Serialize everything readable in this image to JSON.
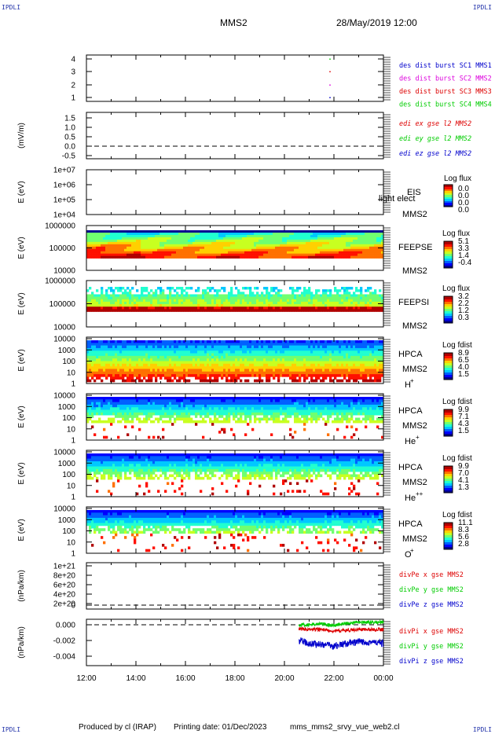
{
  "corner_label": "IPDLI",
  "header": {
    "spacecraft": "MMS2",
    "datetime": "28/May/2019 12:00"
  },
  "footer": {
    "produced_by": "Produced by cl (IRAP)",
    "printing_date": "Printing date: 01/Dec/2023",
    "filename": "mms_mms2_srvy_vue_web2.cl"
  },
  "x_ticks": [
    "12:00",
    "14:00",
    "16:00",
    "18:00",
    "20:00",
    "22:00",
    "00:00"
  ],
  "colors": {
    "blue": "#0000cc",
    "magenta": "#dd00dd",
    "red": "#dd0000",
    "green": "#00cc00",
    "frame": "#000000"
  },
  "chart_data": [
    {
      "type": "scatter",
      "panel": "dist-burst",
      "yticks": [
        "4",
        "3",
        "2",
        "1"
      ],
      "series": [
        {
          "name": "des dist burst SC1 MMS1",
          "color": "#0000cc",
          "x": [
            "21:50"
          ],
          "y": [
            1
          ]
        },
        {
          "name": "des dist burst SC2 MMS2",
          "color": "#dd00dd",
          "x": [
            "21:50"
          ],
          "y": [
            2
          ]
        },
        {
          "name": "des dist burst SC3 MMS3",
          "color": "#dd0000",
          "x": [
            "21:50"
          ],
          "y": [
            3
          ]
        },
        {
          "name": "des dist burst SC4 MMS4",
          "color": "#00cc00",
          "x": [
            "21:50"
          ],
          "y": [
            4
          ]
        }
      ],
      "ylim": [
        0.7,
        4.3
      ]
    },
    {
      "type": "line",
      "panel": "edi-e",
      "ylabel": "(mV/m)",
      "yticks": [
        "1.5",
        "1.0",
        "0.5",
        "0.0",
        "-0.5"
      ],
      "ylim": [
        -0.6,
        1.8
      ],
      "series": [
        {
          "name": "edi ex gse l2 MMS2",
          "color": "#dd0000",
          "values": []
        },
        {
          "name": "edi ey gse l2 MMS2",
          "color": "#00cc00",
          "values": []
        },
        {
          "name": "edi ez gse l2 MMS2",
          "color": "#0000cc",
          "values": []
        }
      ]
    },
    {
      "type": "heatmap",
      "panel": "eis",
      "ylabel": "E (eV)",
      "yticks": [
        "1e+07",
        "1e+06",
        "1e+05",
        "1e+04"
      ],
      "instrument": "EIS",
      "spacecraft": "MMS2",
      "overlay_text": "light elect",
      "cbar_title": "Log flux",
      "cbar_ticks": [
        "0.0",
        "0.0",
        "0.0",
        "0.0"
      ]
    },
    {
      "type": "heatmap",
      "panel": "feepse",
      "ylabel": "E (eV)",
      "yticks": [
        "1000000",
        "100000",
        "10000"
      ],
      "instrument": "FEEPSE",
      "spacecraft": "MMS2",
      "cbar_title": "Log flux",
      "cbar_ticks": [
        "5.1",
        "3.3",
        "1.4",
        "-0.4"
      ]
    },
    {
      "type": "heatmap",
      "panel": "feepsi",
      "ylabel": "E (eV)",
      "yticks": [
        "1000000",
        "100000",
        "10000"
      ],
      "instrument": "FEEPSI",
      "spacecraft": "MMS2",
      "cbar_title": "Log flux",
      "cbar_ticks": [
        "3.2",
        "2.2",
        "1.2",
        "0.3"
      ]
    },
    {
      "type": "heatmap",
      "panel": "hpca-h",
      "ylabel": "E (eV)",
      "yticks": [
        "10000",
        "1000",
        "100",
        "10",
        "1"
      ],
      "instrument": "HPCA",
      "spacecraft": "MMS2",
      "species": "H",
      "species_sup": "+",
      "cbar_title": "Log fdist",
      "cbar_ticks": [
        "8.9",
        "6.5",
        "4.0",
        "1.5"
      ]
    },
    {
      "type": "heatmap",
      "panel": "hpca-he",
      "ylabel": "E (eV)",
      "yticks": [
        "10000",
        "1000",
        "100",
        "10",
        "1"
      ],
      "instrument": "HPCA",
      "spacecraft": "MMS2",
      "species": "He",
      "species_sup": "+",
      "cbar_title": "Log fdist",
      "cbar_ticks": [
        "9.9",
        "7.1",
        "4.3",
        "1.5"
      ]
    },
    {
      "type": "heatmap",
      "panel": "hpca-he2",
      "ylabel": "E (eV)",
      "yticks": [
        "10000",
        "1000",
        "100",
        "10",
        "1"
      ],
      "instrument": "HPCA",
      "spacecraft": "MMS2",
      "species": "He",
      "species_sup": "++",
      "cbar_title": "Log fdist",
      "cbar_ticks": [
        "9.9",
        "7.0",
        "4.1",
        "1.3"
      ]
    },
    {
      "type": "heatmap",
      "panel": "hpca-o",
      "ylabel": "E (eV)",
      "yticks": [
        "10000",
        "1000",
        "100",
        "10",
        "1"
      ],
      "instrument": "HPCA",
      "spacecraft": "MMS2",
      "species": "O",
      "species_sup": "+",
      "cbar_title": "Log fdist",
      "cbar_ticks": [
        "11.1",
        "8.3",
        "5.6",
        "2.8"
      ]
    },
    {
      "type": "line",
      "panel": "divpe",
      "ylabel": "(nPa/km)",
      "yticks": [
        "1e+21",
        "8e+20",
        "6e+20",
        "4e+20",
        "2e+20",
        "0"
      ],
      "series": [
        {
          "name": "divPe x gse MMS2",
          "color": "#dd0000",
          "values": []
        },
        {
          "name": "divPe y gse MMS2",
          "color": "#00cc00",
          "values": []
        },
        {
          "name": "divPe z gse MMS2",
          "color": "#0000cc",
          "values": []
        }
      ]
    },
    {
      "type": "line",
      "panel": "divpi",
      "ylabel": "(nPa/km)",
      "yticks": [
        "0.000",
        "-0.002",
        "-0.004"
      ],
      "ylim": [
        -0.0052,
        0.0007
      ],
      "x": [
        "20:35",
        "21:00",
        "21:30",
        "22:00",
        "22:30",
        "23:00",
        "23:30",
        "00:00"
      ],
      "series": [
        {
          "name": "divPi x gse MMS2",
          "color": "#dd0000",
          "values": [
            -0.0005,
            -0.0006,
            -0.0006,
            -0.0008,
            -0.0007,
            -0.0006,
            -0.0006,
            -0.0006
          ]
        },
        {
          "name": "divPi y gse MMS2",
          "color": "#00cc00",
          "values": [
            0.0,
            0.0,
            0.0001,
            -0.0001,
            0.0002,
            0.0003,
            0.0003,
            0.0003
          ]
        },
        {
          "name": "divPi z gse MMS2",
          "color": "#0000cc",
          "values": [
            -0.002,
            -0.0024,
            -0.0025,
            -0.0027,
            -0.0024,
            -0.0022,
            -0.0022,
            -0.0024
          ]
        }
      ]
    }
  ]
}
